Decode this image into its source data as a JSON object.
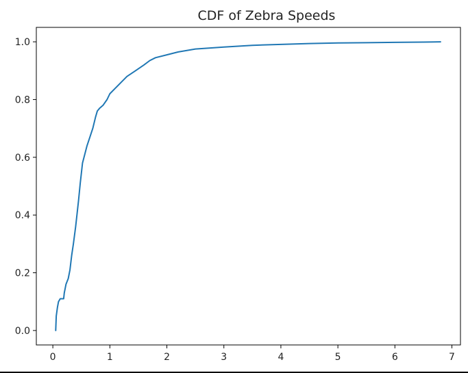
{
  "chart_data": {
    "type": "line",
    "title": "CDF of Zebra Speeds",
    "xlabel": "",
    "ylabel": "",
    "xlim": [
      -0.29,
      7.15
    ],
    "ylim": [
      -0.05,
      1.05
    ],
    "xticks": [
      0,
      1,
      2,
      3,
      4,
      5,
      6,
      7
    ],
    "yticks": [
      0.0,
      0.2,
      0.4,
      0.6,
      0.8,
      1.0
    ],
    "grid": false,
    "series": [
      {
        "color": "#1f77b4",
        "x": [
          0.05,
          0.06,
          0.08,
          0.1,
          0.13,
          0.16,
          0.19,
          0.2,
          0.23,
          0.27,
          0.3,
          0.33,
          0.36,
          0.4,
          0.45,
          0.48,
          0.52,
          0.56,
          0.6,
          0.65,
          0.7,
          0.75,
          0.78,
          0.82,
          0.88,
          0.95,
          1.0,
          1.1,
          1.2,
          1.3,
          1.45,
          1.6,
          1.7,
          1.8,
          2.0,
          2.2,
          2.5,
          3.0,
          3.5,
          4.0,
          4.5,
          5.0,
          5.5,
          6.0,
          6.5,
          6.8
        ],
        "y": [
          0.0,
          0.05,
          0.08,
          0.1,
          0.11,
          0.11,
          0.11,
          0.13,
          0.16,
          0.18,
          0.21,
          0.26,
          0.3,
          0.36,
          0.45,
          0.51,
          0.58,
          0.61,
          0.64,
          0.67,
          0.7,
          0.74,
          0.76,
          0.77,
          0.78,
          0.8,
          0.82,
          0.84,
          0.86,
          0.88,
          0.9,
          0.92,
          0.935,
          0.945,
          0.955,
          0.965,
          0.975,
          0.982,
          0.988,
          0.991,
          0.994,
          0.996,
          0.997,
          0.998,
          0.999,
          1.0
        ]
      }
    ]
  }
}
